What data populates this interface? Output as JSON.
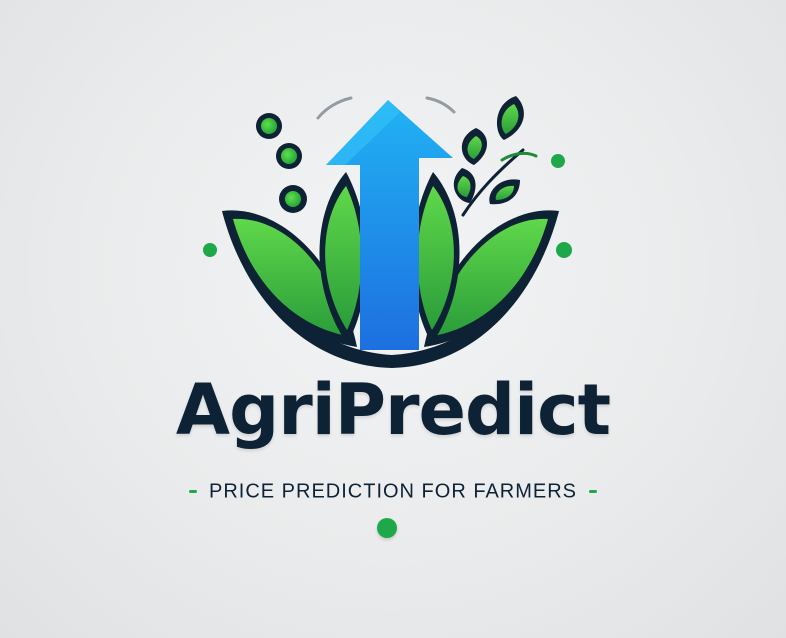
{
  "logo": {
    "name": "AgriPredict",
    "tagline": "PRICE PREDICTION FOR FARMERS",
    "icon": "leaf-arrow-icon"
  },
  "colors": {
    "background": "#e9ebec",
    "text": "#0e2236",
    "leaf_green": "#3ec13c",
    "dot_green": "#1fa84a",
    "arrow_blue": "#1e9af0"
  }
}
